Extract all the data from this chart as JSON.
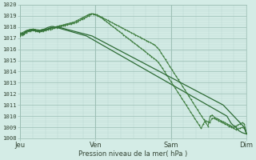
{
  "xlabel": "Pression niveau de la mer( hPa )",
  "ylim": [
    1008,
    1020
  ],
  "yticks": [
    1008,
    1009,
    1010,
    1011,
    1012,
    1013,
    1014,
    1015,
    1016,
    1017,
    1018,
    1019,
    1020
  ],
  "day_labels": [
    "Jeu",
    "Ven",
    "Sam",
    "Dim"
  ],
  "day_positions": [
    0,
    0.333,
    0.667,
    1.0
  ],
  "background_color": "#d4ece6",
  "grid_major_color": "#9dbfb5",
  "grid_minor_color": "#b8d8d0",
  "line_dark": "#2d6b35",
  "line_medium": "#3a7a3a",
  "tick_label_color": "#334433",
  "n_points": 4,
  "series1": [
    1017.4,
    1017.4,
    1017.3,
    1017.6,
    1017.7,
    1017.75,
    1017.78,
    1017.75,
    1017.7,
    1017.65,
    1017.7,
    1017.75,
    1017.8,
    1017.85,
    1017.95,
    1018.0,
    1018.05,
    1018.05,
    1018.0,
    1017.95,
    1017.9,
    1017.85,
    1017.8,
    1017.75,
    1017.7,
    1017.65,
    1017.6,
    1017.55,
    1017.5,
    1017.45,
    1017.4,
    1017.35,
    1017.3,
    1017.25,
    1017.2,
    1017.1,
    1017.0,
    1016.9,
    1016.8,
    1016.7,
    1016.6,
    1016.5,
    1016.4,
    1016.3,
    1016.2,
    1016.1,
    1016.0,
    1015.9,
    1015.8,
    1015.7,
    1015.6,
    1015.5,
    1015.4,
    1015.3,
    1015.2,
    1015.1,
    1015.0,
    1014.9,
    1014.8,
    1014.7,
    1014.6,
    1014.5,
    1014.4,
    1014.3,
    1014.2,
    1014.1,
    1014.0,
    1013.9,
    1013.8,
    1013.7,
    1013.6,
    1013.5,
    1013.4,
    1013.3,
    1013.2,
    1013.1,
    1013.0,
    1012.9,
    1012.8,
    1012.7,
    1012.6,
    1012.5,
    1012.4,
    1012.3,
    1012.2,
    1012.1,
    1012.0,
    1011.9,
    1011.8,
    1011.7,
    1011.6,
    1011.5,
    1011.4,
    1011.3,
    1011.2,
    1011.1,
    1011.0,
    1010.9,
    1010.8,
    1010.7,
    1010.6,
    1010.5,
    1010.4,
    1010.3,
    1010.2,
    1010.1,
    1010.0,
    1009.7,
    1009.4,
    1009.2,
    1009.1,
    1008.9,
    1008.7,
    1008.6,
    1008.5,
    1008.45,
    1008.4
  ],
  "series2": [
    1017.2,
    1017.3,
    1017.4,
    1017.5,
    1017.6,
    1017.65,
    1017.7,
    1017.65,
    1017.6,
    1017.55,
    1017.6,
    1017.65,
    1017.7,
    1017.75,
    1017.8,
    1017.85,
    1017.9,
    1017.95,
    1018.0,
    1018.05,
    1018.1,
    1018.15,
    1018.2,
    1018.25,
    1018.3,
    1018.35,
    1018.4,
    1018.5,
    1018.6,
    1018.7,
    1018.8,
    1018.9,
    1019.0,
    1019.1,
    1019.2,
    1019.15,
    1019.1,
    1019.0,
    1018.9,
    1018.8,
    1018.7,
    1018.6,
    1018.5,
    1018.4,
    1018.3,
    1018.2,
    1018.1,
    1018.0,
    1017.9,
    1017.8,
    1017.7,
    1017.6,
    1017.5,
    1017.4,
    1017.3,
    1017.2,
    1017.1,
    1017.0,
    1016.9,
    1016.8,
    1016.7,
    1016.6,
    1016.5,
    1016.4,
    1016.2,
    1016.0,
    1015.7,
    1015.4,
    1015.1,
    1014.8,
    1014.5,
    1014.2,
    1013.9,
    1013.6,
    1013.3,
    1013.0,
    1012.7,
    1012.4,
    1012.1,
    1011.8,
    1011.5,
    1011.2,
    1010.9,
    1010.6,
    1010.3,
    1010.0,
    1009.7,
    1009.4,
    1009.1,
    1010.0,
    1010.1,
    1009.9,
    1009.8,
    1009.7,
    1009.6,
    1009.5,
    1009.4,
    1009.3,
    1009.2,
    1009.1,
    1009.0,
    1009.1,
    1009.2,
    1009.3,
    1009.4,
    1009.3,
    1008.5
  ],
  "series3": [
    1017.45,
    1017.5,
    1017.6,
    1017.7,
    1017.75,
    1017.8,
    1017.82,
    1017.8,
    1017.75,
    1017.72,
    1017.75,
    1017.78,
    1017.82,
    1017.86,
    1017.9,
    1017.95,
    1018.0,
    1018.05,
    1018.1,
    1018.15,
    1018.2,
    1018.25,
    1018.3,
    1018.35,
    1018.4,
    1018.45,
    1018.55,
    1018.65,
    1018.75,
    1018.85,
    1018.95,
    1019.05,
    1019.15,
    1019.2,
    1019.15,
    1019.1,
    1019.0,
    1018.9,
    1018.8,
    1018.65,
    1018.5,
    1018.35,
    1018.2,
    1018.05,
    1017.9,
    1017.75,
    1017.6,
    1017.45,
    1017.3,
    1017.15,
    1017.0,
    1016.85,
    1016.7,
    1016.55,
    1016.4,
    1016.25,
    1016.1,
    1015.95,
    1015.8,
    1015.65,
    1015.5,
    1015.35,
    1015.2,
    1015.05,
    1014.85,
    1014.6,
    1014.3,
    1014.0,
    1013.7,
    1013.4,
    1013.1,
    1012.8,
    1012.5,
    1012.2,
    1011.9,
    1011.6,
    1011.3,
    1011.0,
    1010.7,
    1010.4,
    1010.1,
    1009.8,
    1009.5,
    1009.2,
    1008.9,
    1009.3,
    1009.6,
    1009.5,
    1009.4,
    1009.8,
    1009.8,
    1009.7,
    1009.6,
    1009.5,
    1009.4,
    1009.3,
    1009.2,
    1009.1,
    1009.0,
    1008.9,
    1008.8,
    1008.85,
    1008.9,
    1009.0,
    1008.9,
    1008.4
  ],
  "series4": [
    1017.3,
    1017.4,
    1017.5,
    1017.6,
    1017.65,
    1017.7,
    1017.72,
    1017.7,
    1017.65,
    1017.6,
    1017.65,
    1017.7,
    1017.75,
    1017.8,
    1017.9,
    1017.95,
    1018.0,
    1018.0,
    1018.0,
    1017.95,
    1017.9,
    1017.85,
    1017.8,
    1017.75,
    1017.7,
    1017.65,
    1017.6,
    1017.55,
    1017.5,
    1017.45,
    1017.4,
    1017.35,
    1017.3,
    1017.25,
    1017.2,
    1017.1,
    1017.0,
    1016.9,
    1016.8,
    1016.7,
    1016.6,
    1016.5,
    1016.4,
    1016.3,
    1016.2,
    1016.1,
    1016.0,
    1015.9,
    1015.8,
    1015.7,
    1015.6,
    1015.5,
    1015.4,
    1015.3,
    1015.2,
    1015.1,
    1015.0,
    1014.9,
    1014.8,
    1014.7,
    1014.6,
    1014.5,
    1014.4,
    1014.3,
    1014.2,
    1014.1,
    1014.0,
    1013.9,
    1013.8,
    1013.7,
    1013.6,
    1013.5,
    1013.4,
    1013.3,
    1013.2,
    1013.1,
    1013.0,
    1012.9,
    1012.8,
    1012.7,
    1012.6,
    1012.5,
    1012.4,
    1012.3,
    1012.2,
    1012.1,
    1012.0,
    1011.9,
    1011.8,
    1011.7,
    1011.6,
    1011.5,
    1011.4,
    1011.3,
    1011.2,
    1011.1,
    1011.0,
    1010.8,
    1010.6,
    1010.4,
    1010.2,
    1010.0,
    1009.8,
    1009.6,
    1009.4,
    1009.2,
    1009.0,
    1008.5
  ]
}
